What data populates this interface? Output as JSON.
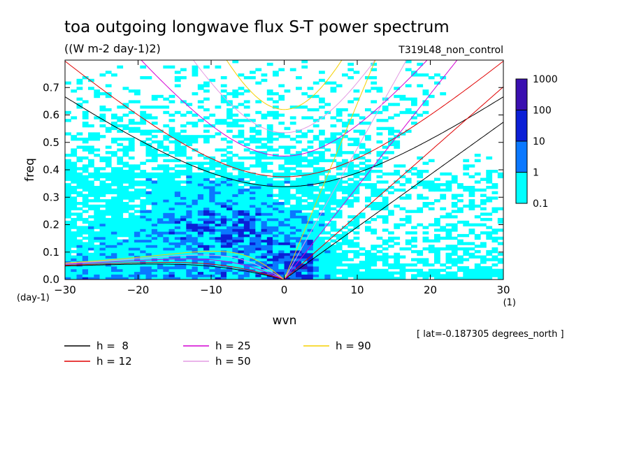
{
  "chart_data": {
    "type": "heatmap",
    "title": "toa outgoing longwave flux S-T power spectrum",
    "subtitle": "((W m-2 day-1)2)",
    "experiment": "T319L48_non_control",
    "xlabel": "wvn",
    "ylabel": "freq",
    "x_unit": "(1)",
    "y_unit": "(day-1)",
    "xlim": [
      -30,
      30
    ],
    "ylim": [
      0,
      0.8
    ],
    "xticks": [
      -30,
      -20,
      -10,
      0,
      10,
      20,
      30
    ],
    "yticks": [
      0.0,
      0.1,
      0.2,
      0.3,
      0.4,
      0.5,
      0.6,
      0.7
    ],
    "xtick_labels": [
      "-30",
      "-20",
      "-10",
      "0",
      "10",
      "20",
      "30"
    ],
    "ytick_labels": [
      "0.0",
      "0.1",
      "0.2",
      "0.3",
      "0.4",
      "0.5",
      "0.6",
      "0.7"
    ],
    "colorbar": {
      "levels": [
        0.1,
        1,
        10,
        100,
        1000
      ],
      "labels": [
        "0.1",
        "1",
        "10",
        "100",
        "1000"
      ],
      "colors": [
        "#00ffff",
        "#0a78ff",
        "#0b1fd6",
        "#3a0fb0"
      ]
    },
    "dispersion_curves": [
      {
        "label": "h =  8",
        "h": 8,
        "color": "#000000"
      },
      {
        "label": "h = 12",
        "h": 12,
        "color": "#e00000"
      },
      {
        "label": "h = 25",
        "h": 25,
        "color": "#d400d4"
      },
      {
        "label": "h = 50",
        "h": 50,
        "color": "#e39be3"
      },
      {
        "label": "h = 90",
        "h": 90,
        "color": "#f5d000"
      }
    ],
    "footnote": "[ lat=-0.187305 degrees_north ]"
  }
}
